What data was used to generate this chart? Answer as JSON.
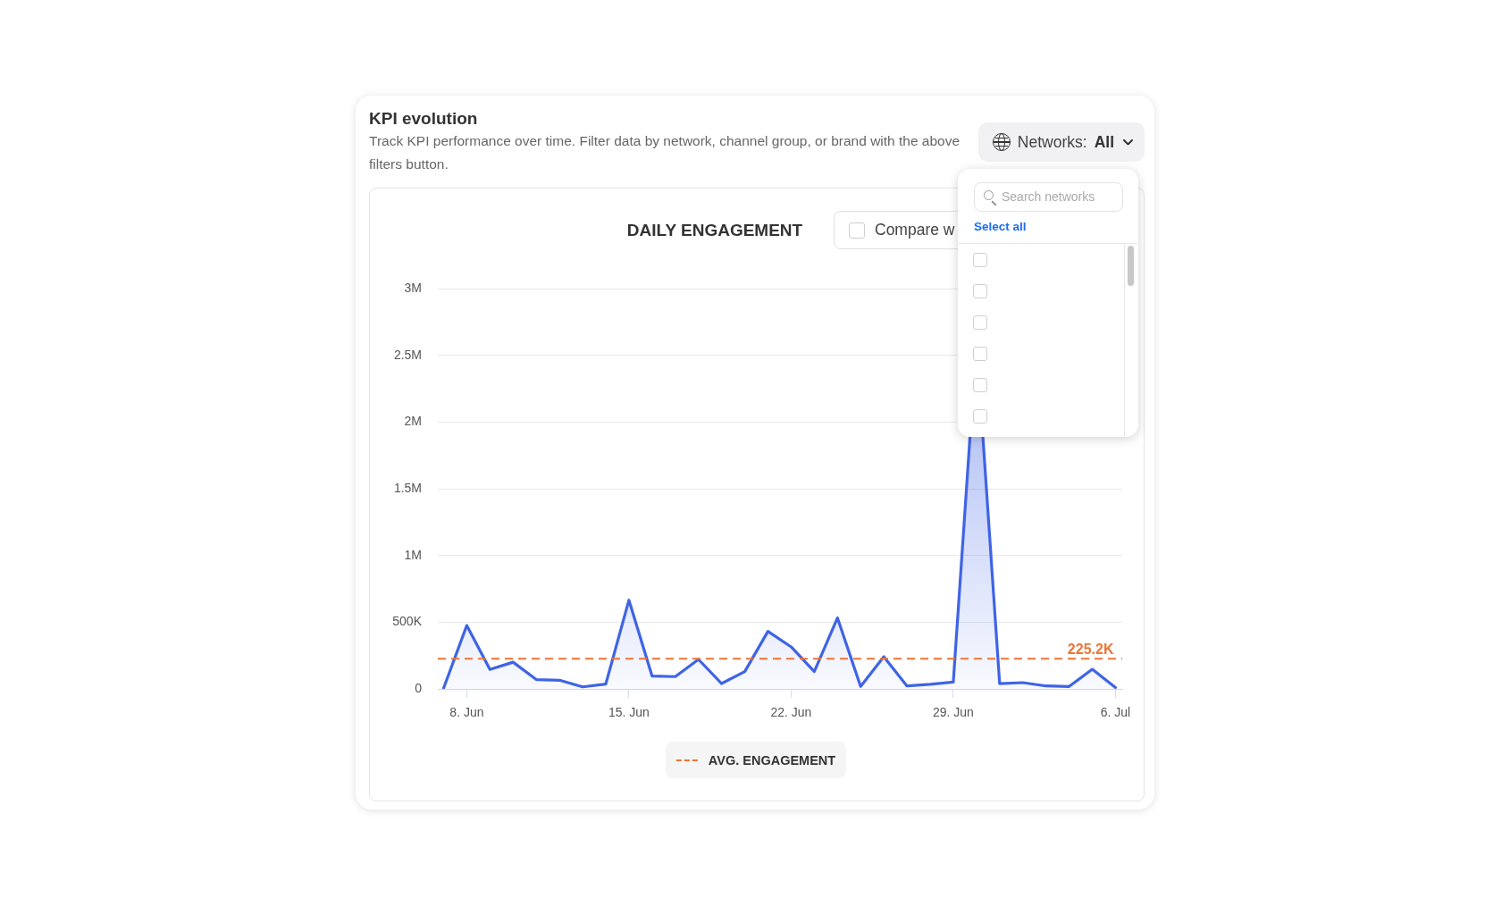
{
  "chart_data": {
    "type": "area",
    "title": "DAILY ENGAGEMENT",
    "annotations": [
      "KPI evolution",
      "Track KPI performance over time. Filter data by network, channel group, or brand with the above filters button.",
      "Networks:",
      "All",
      "Compare w",
      "Search networks",
      "Select all",
      {
        "text": "225.2K",
        "x": "--07-06",
        "y": 225200
      }
    ],
    "x": [
      "--06-07",
      "--06-08",
      "--06-09",
      "--06-10",
      "--06-11",
      "--06-12",
      "--06-13",
      "--06-14",
      "--06-15",
      "--06-16",
      "--06-17",
      "--06-18",
      "--06-19",
      "--06-20",
      "--06-21",
      "--06-22",
      "--06-23",
      "--06-24",
      "--06-25",
      "--06-26",
      "--06-27",
      "--06-28",
      "--06-29",
      "--06-30",
      "--07-01",
      "--07-02",
      "--07-03",
      "--07-04",
      "--07-05",
      "--07-06"
    ],
    "values": [
      5000,
      475000,
      145000,
      200000,
      70000,
      65000,
      15000,
      36000,
      665000,
      96000,
      92000,
      221000,
      40000,
      130000,
      431000,
      315000,
      130000,
      532000,
      18000,
      241000,
      22000,
      34000,
      51000,
      2600000,
      40000,
      47000,
      22000,
      18000,
      147000,
      10000
    ],
    "color": "#3f64e4",
    "xlim": [
      "--06-06T18:00",
      "--07-06T07:00"
    ],
    "xticks": [
      {
        "value": "--06-08",
        "label": "8. Jun"
      },
      {
        "value": "--06-15",
        "label": "15. Jun"
      },
      {
        "value": "--06-22",
        "label": "22. Jun"
      },
      {
        "value": "--06-29",
        "label": "29. Jun"
      },
      {
        "value": "--07-06",
        "label": "6. Jul"
      }
    ],
    "ylim": [
      0,
      3000000
    ],
    "yticks": [
      0,
      {
        "value": 500000,
        "label": "500K"
      },
      {
        "value": 1000000,
        "label": "1M"
      },
      {
        "value": 1500000,
        "label": "1.5M"
      },
      {
        "value": 2000000,
        "label": "2M"
      },
      {
        "value": 2500000,
        "label": "2.5M"
      },
      {
        "value": 3000000,
        "label": "3M"
      }
    ],
    "grid": "y",
    "legend": "bottom",
    "marker": "none",
    "ref_lines": [
      {
        "axis": "y",
        "value": 225200,
        "label": "AVG. ENGAGEMENT",
        "color": "#ee7436",
        "line_style": "dashed"
      }
    ]
  }
}
